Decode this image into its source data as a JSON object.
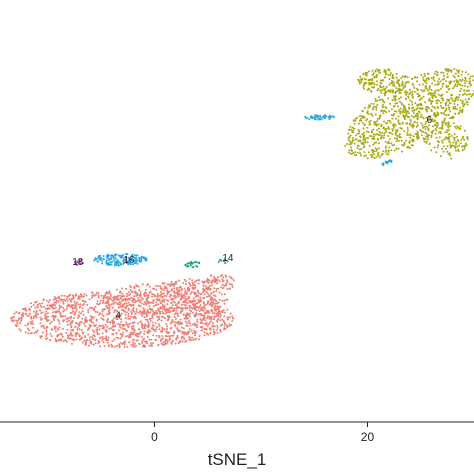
{
  "chart_data": {
    "type": "scatter",
    "xlabel": "tSNE_1",
    "ylabel": "",
    "x_ticks": [
      0,
      20
    ],
    "xlim": [
      -14.5,
      30
    ],
    "ylim": [
      -40,
      38
    ],
    "grid": false,
    "legend": "none",
    "clusters": [
      {
        "label": "4",
        "color": "#f07e74",
        "label_pos": [
          -3.4,
          -20.4
        ],
        "blobs": [
          {
            "cx": -3,
            "cy": -21,
            "rx": 10.5,
            "ry": 5.2,
            "n": 1400
          },
          {
            "cx": 1,
            "cy": -17.5,
            "rx": 6,
            "ry": 3.2,
            "n": 350
          },
          {
            "cx": 4,
            "cy": -15,
            "rx": 3.5,
            "ry": 1.5,
            "n": 120
          },
          {
            "cx": 6.2,
            "cy": -13.5,
            "rx": 1.4,
            "ry": 0.8,
            "n": 30
          }
        ]
      },
      {
        "label": "6",
        "color": "#a9a914",
        "label_pos": [
          25.8,
          15.7
        ],
        "blobs": [
          {
            "cx": 24,
            "cy": 17,
            "rx": 4.2,
            "ry": 9.5,
            "angle": -32,
            "n": 900
          },
          {
            "cx": 21.5,
            "cy": 23,
            "rx": 2.4,
            "ry": 2.3,
            "n": 150
          },
          {
            "cx": 27.5,
            "cy": 12,
            "rx": 2.0,
            "ry": 3.5,
            "n": 120
          }
        ]
      },
      {
        "label": "16",
        "color": "#2aa9e3",
        "label_pos": [
          -2.4,
          -10.1
        ],
        "blobs": [
          {
            "cx": -3.2,
            "cy": -10,
            "rx": 2.6,
            "ry": 1.1,
            "n": 160
          },
          {
            "cx": 15.6,
            "cy": 16.3,
            "rx": 1.6,
            "ry": 0.45,
            "n": 50
          },
          {
            "cx": 21.8,
            "cy": 7.9,
            "rx": 0.9,
            "ry": 0.25,
            "angle": 40,
            "n": 20
          }
        ]
      },
      {
        "label": "14",
        "color": "#2a9e70",
        "label_pos": [
          6.9,
          -9.8
        ],
        "blobs": [
          {
            "cx": 3.6,
            "cy": -10.8,
            "rx": 0.9,
            "ry": 0.6,
            "n": 25
          },
          {
            "cx": 6.5,
            "cy": -10.3,
            "rx": 0.5,
            "ry": 0.4,
            "n": 10
          }
        ]
      },
      {
        "label": "18",
        "color": "#b83fbf",
        "label_pos": [
          -7.2,
          -10.5
        ],
        "blobs": [
          {
            "cx": -7.1,
            "cy": -10.5,
            "rx": 0.4,
            "ry": 0.6,
            "n": 14
          }
        ]
      }
    ]
  }
}
